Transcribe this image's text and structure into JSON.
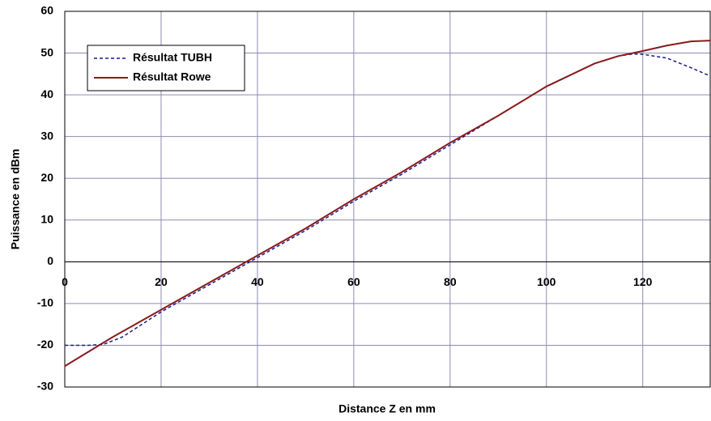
{
  "chart_data": {
    "type": "line",
    "xlabel": "Distance Z en mm",
    "ylabel": "Puissance en dBm",
    "xlim": [
      0,
      134
    ],
    "ylim": [
      -30,
      60
    ],
    "xticks": [
      0,
      20,
      40,
      60,
      80,
      100,
      120
    ],
    "yticks": [
      -30,
      -20,
      -10,
      0,
      10,
      20,
      30,
      40,
      50,
      60
    ],
    "grid": true,
    "legend": "upper left",
    "series": [
      {
        "name": "Résultat TUBH",
        "color": "#1a1a8c",
        "dash": true,
        "x": [
          0,
          5,
          8,
          12,
          20,
          30,
          40,
          50,
          60,
          70,
          80,
          90,
          100,
          110,
          115,
          118,
          120,
          125,
          130,
          134
        ],
        "values": [
          -20,
          -20,
          -19.8,
          -18,
          -12,
          -5.5,
          1,
          7.5,
          14.5,
          21,
          28,
          35,
          42,
          47.5,
          49.3,
          49.8,
          49.7,
          48.8,
          46.5,
          44.5
        ]
      },
      {
        "name": "Résultat Rowe",
        "color": "#8b1a1a",
        "dash": false,
        "x": [
          0,
          10,
          20,
          30,
          40,
          50,
          60,
          70,
          80,
          90,
          100,
          110,
          115,
          120,
          125,
          130,
          134
        ],
        "values": [
          -25,
          -18,
          -11.5,
          -5,
          1.5,
          8,
          15,
          21.5,
          28.5,
          35,
          42,
          47.5,
          49.3,
          50.5,
          51.8,
          52.8,
          53
        ]
      }
    ]
  }
}
